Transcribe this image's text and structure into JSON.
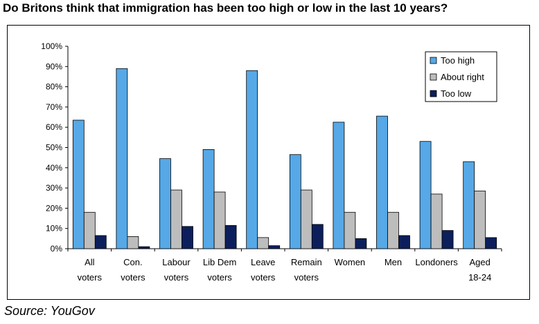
{
  "title": "Do Britons think that immigration has been too high or low in the last 10 years?",
  "source": "Source: YouGov",
  "chart_data": {
    "type": "bar",
    "categories": [
      [
        "All",
        "voters"
      ],
      [
        "Con.",
        "voters"
      ],
      [
        "Labour",
        "voters"
      ],
      [
        "Lib Dem",
        "voters"
      ],
      [
        "Leave",
        "voters"
      ],
      [
        "Remain",
        "voters"
      ],
      [
        "Women"
      ],
      [
        "Men"
      ],
      [
        "Londoners"
      ],
      [
        "Aged",
        "18-24"
      ]
    ],
    "series": [
      {
        "name": "Too high",
        "color": "#56a8e6",
        "values": [
          63.5,
          89,
          44.5,
          49,
          88,
          46.5,
          62.5,
          65.5,
          53,
          43
        ]
      },
      {
        "name": "About right",
        "color": "#bdbdbd",
        "values": [
          18,
          6,
          29,
          28,
          5.5,
          29,
          18,
          18,
          27,
          28.5
        ]
      },
      {
        "name": "Too low",
        "color": "#0c1f5c",
        "values": [
          6.5,
          1,
          11,
          11.5,
          1.5,
          12,
          5,
          6.5,
          9,
          5.5
        ]
      }
    ],
    "yticks": [
      "0%",
      "10%",
      "20%",
      "30%",
      "40%",
      "50%",
      "60%",
      "70%",
      "80%",
      "90%",
      "100%"
    ],
    "ylim": [
      0,
      100
    ],
    "legend": "top-right",
    "grid": false
  }
}
